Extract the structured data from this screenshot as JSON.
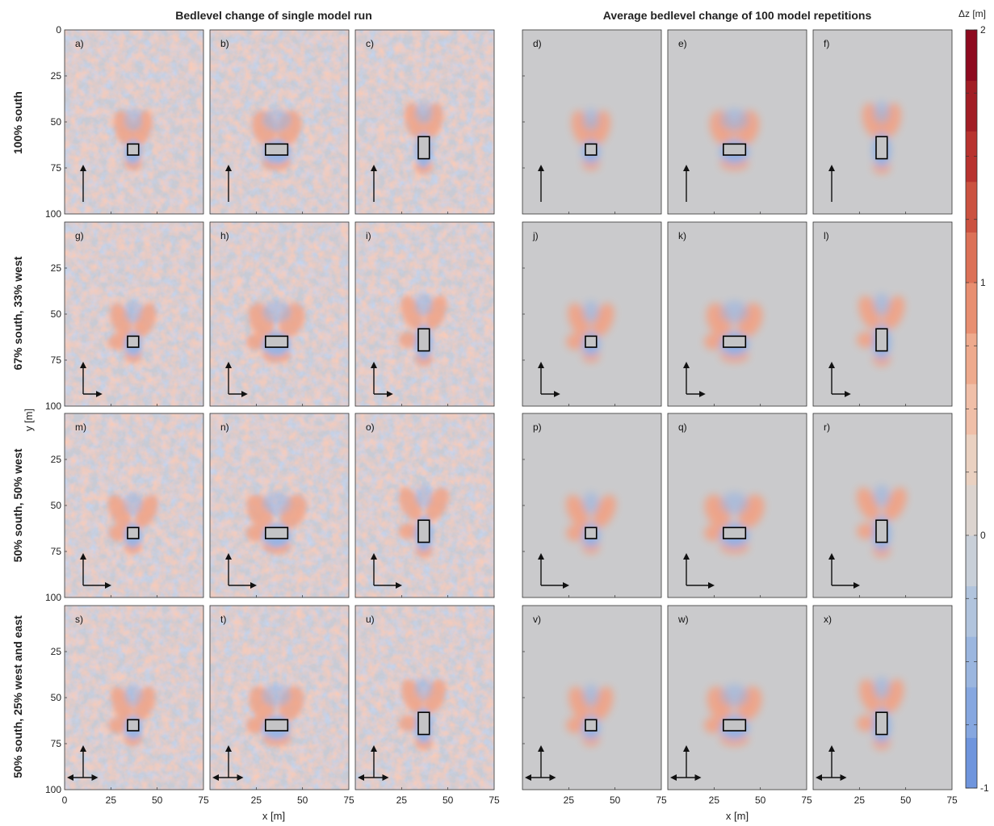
{
  "figure": {
    "group_titles": [
      "Bedlevel change of single model run",
      "Average bedlevel change of 100 model repetitions"
    ],
    "row_labels": [
      "100% south",
      "67% south, 33% west",
      "50% south, 50% west",
      "50% south, 25% west and east"
    ],
    "y_axis_label": "y [m]",
    "x_axis_label": "x [m]",
    "colorbar_label": "Δz [m]"
  },
  "chart_data": {
    "type": "heatmap",
    "title": "",
    "panel_letters": [
      [
        "a)",
        "b)",
        "c)",
        "d)",
        "e)",
        "f)"
      ],
      [
        "g)",
        "h)",
        "i)",
        "j)",
        "k)",
        "l)"
      ],
      [
        "m)",
        "n)",
        "o)",
        "p)",
        "q)",
        "r)"
      ],
      [
        "s)",
        "t)",
        "u)",
        "v)",
        "w)",
        "x)"
      ]
    ],
    "xlim": [
      0,
      75
    ],
    "ylim": [
      0,
      100
    ],
    "y_reversed": true,
    "x_ticks_left_group": [
      "0",
      "25",
      "50",
      "75"
    ],
    "x_ticks_left_panels": [
      "25",
      "50",
      "75"
    ],
    "x_ticks_right_first_panel": [
      "25",
      "50",
      "75"
    ],
    "x_ticks_right_panels": [
      "25",
      "50",
      "75"
    ],
    "y_ticks_top_row": [
      "0",
      "25",
      "50",
      "75",
      "100"
    ],
    "y_ticks_other_rows": [
      "25",
      "50",
      "75",
      "100"
    ],
    "colorbar": {
      "min": -1,
      "max": 2,
      "ticks": [
        "-1",
        "0",
        "1",
        "2"
      ],
      "levels": 12,
      "colors": [
        "#6f95dd",
        "#86a7e0",
        "#9bb6df",
        "#b1c4dd",
        "#c8cfd8",
        "#dcd4cf",
        "#ead1c1",
        "#f0bfa8",
        "#eeaa8d",
        "#e88f71",
        "#dc7157",
        "#cb5240",
        "#b8332f",
        "#a21e25",
        "#8e0a1f"
      ]
    },
    "structure_columns": [
      {
        "name": "small square",
        "x": [
          34,
          40
        ],
        "y": [
          62,
          68
        ]
      },
      {
        "name": "wide rectangle",
        "x": [
          30,
          42
        ],
        "y": [
          62,
          68
        ]
      },
      {
        "name": "tall rectangle",
        "x": [
          34,
          40
        ],
        "y": [
          58,
          70
        ]
      }
    ],
    "flow_rows": [
      {
        "label": "100% south",
        "south": 1.0,
        "west": 0.0,
        "east": 0.0
      },
      {
        "label": "67% south, 33% west",
        "south": 0.67,
        "west": 0.33,
        "east": 0.0
      },
      {
        "label": "50% south, 50% west",
        "south": 0.5,
        "west": 0.5,
        "east": 0.0
      },
      {
        "label": "50% south, 25% west and east",
        "south": 0.5,
        "west": 0.25,
        "east": 0.25
      }
    ],
    "panel_colors": {
      "single_run_background": "#c8cbd4",
      "average_background": "#cacacc",
      "deposition": "#f0a386",
      "erosion": "#8fb0e6",
      "structure_fill": "#c4c4c6"
    }
  }
}
